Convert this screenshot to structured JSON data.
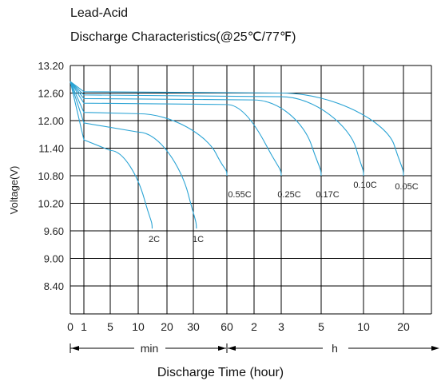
{
  "title": "Lead-Acid",
  "subtitle": "Discharge Characteristics(@25℃/77℉)",
  "xlabel": "Discharge Time (hour)",
  "ylabel": "Voltage(V)",
  "unit_min": "min",
  "unit_h": "h",
  "chart_data": {
    "type": "line",
    "title": "Lead-Acid",
    "subtitle": "Discharge Characteristics(@25℃/77℉)",
    "xlabel": "Discharge Time (hour)",
    "ylabel": "Voltage(V)",
    "ylim": [
      8.4,
      13.2
    ],
    "yticks": [
      "13.20",
      "12.60",
      "12.00",
      "11.40",
      "10.80",
      "10.20",
      "9.60",
      "9.00",
      "8.40"
    ],
    "xticks": [
      "0",
      "1",
      "5",
      "10",
      "20",
      "30",
      "60",
      "2",
      "3",
      "5",
      "10",
      "20"
    ],
    "x_scale": "log (minutes up to 60 min, then hours up to 20 h)",
    "grid": true,
    "series": [
      {
        "name": "2C",
        "end_time": "~14 min",
        "x": [
          "0 min",
          "1 min",
          "5 min",
          "10 min",
          "14 min"
        ],
        "y": [
          12.85,
          11.58,
          11.35,
          10.7,
          9.65
        ]
      },
      {
        "name": "1C",
        "end_time": "~32 min",
        "x": [
          "0 min",
          "1 min",
          "10 min",
          "25 min",
          "32 min"
        ],
        "y": [
          12.85,
          11.95,
          11.75,
          10.9,
          9.65
        ]
      },
      {
        "name": "0.55C",
        "end_time": "~1 h",
        "x": [
          "0 min",
          "1 min",
          "10 min",
          "40 min",
          "60 min"
        ],
        "y": [
          12.85,
          12.18,
          12.15,
          11.6,
          10.8
        ]
      },
      {
        "name": "0.25C",
        "end_time": "~3 h",
        "x": [
          "0 min",
          "1 min",
          "60 min",
          "2 h",
          "3 h"
        ],
        "y": [
          12.85,
          12.38,
          12.35,
          11.9,
          10.8
        ]
      },
      {
        "name": "0.17C",
        "end_time": "~5 h",
        "x": [
          "0 min",
          "1 min",
          "2 h",
          "4 h",
          "5 h"
        ],
        "y": [
          12.85,
          12.48,
          12.45,
          11.9,
          10.8
        ]
      },
      {
        "name": "0.10C",
        "end_time": "~10 h",
        "x": [
          "0 min",
          "1 min",
          "3 h",
          "8 h",
          "10 h"
        ],
        "y": [
          12.85,
          12.56,
          12.52,
          11.8,
          10.8
        ]
      },
      {
        "name": "0.05C",
        "end_time": "~20 h",
        "x": [
          "0 min",
          "1 min",
          "3 h",
          "15 h",
          "20 h"
        ],
        "y": [
          12.85,
          12.63,
          12.6,
          11.9,
          10.8
        ]
      }
    ],
    "colors": {
      "curve": "#2aa3d4",
      "grid": "#000000"
    }
  }
}
